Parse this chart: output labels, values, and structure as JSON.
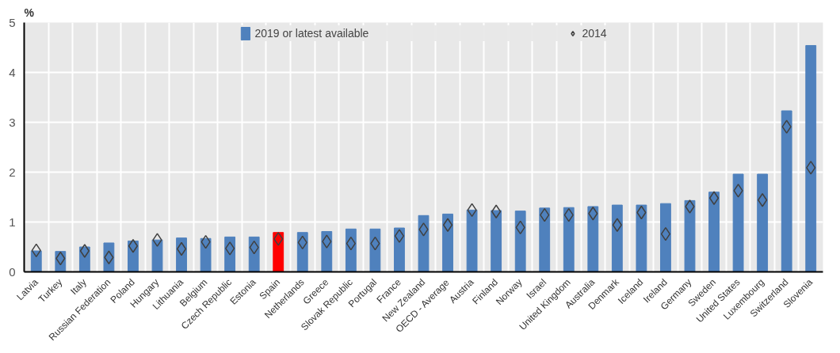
{
  "chart_data": {
    "type": "bar",
    "ylabel": "%",
    "categories": [
      "Latvia",
      "Turkey",
      "Italy",
      "Russian Federation",
      "Poland",
      "Hungary",
      "Lithuania",
      "Belgium",
      "Czech Republic",
      "Estonia",
      "Spain",
      "Netherlands",
      "Greece",
      "Slovak Republic",
      "Portugal",
      "France",
      "New Zealand",
      "OECD - Average",
      "Austria",
      "Finland",
      "Norway",
      "Israel",
      "United Kingdom",
      "Australia",
      "Denmark",
      "Iceland",
      "Ireland",
      "Germany",
      "Sweden",
      "United States",
      "Luxembourg",
      "Switzerland",
      "Slovenia"
    ],
    "series": [
      {
        "name": "2019 or latest available",
        "color": "#4f81bd",
        "colors": [
          "#4f81bd",
          "#4f81bd",
          "#4f81bd",
          "#4f81bd",
          "#4f81bd",
          "#4f81bd",
          "#4f81bd",
          "#4f81bd",
          "#4f81bd",
          "#4f81bd",
          "#ff0000",
          "#4f81bd",
          "#4f81bd",
          "#4f81bd",
          "#4f81bd",
          "#4f81bd",
          "#4f81bd",
          "#4f81bd",
          "#4f81bd",
          "#4f81bd",
          "#4f81bd",
          "#4f81bd",
          "#4f81bd",
          "#4f81bd",
          "#4f81bd",
          "#4f81bd",
          "#4f81bd",
          "#4f81bd",
          "#4f81bd",
          "#4f81bd",
          "#4f81bd",
          "#4f81bd",
          "#4f81bd"
        ],
        "values": [
          0.42,
          0.41,
          0.5,
          0.58,
          0.62,
          0.64,
          0.68,
          0.67,
          0.7,
          0.7,
          0.79,
          0.79,
          0.81,
          0.86,
          0.86,
          0.88,
          1.13,
          1.16,
          1.24,
          1.23,
          1.22,
          1.28,
          1.29,
          1.31,
          1.34,
          1.34,
          1.37,
          1.43,
          1.6,
          1.96,
          1.96,
          3.23,
          4.54
        ]
      },
      {
        "name": "2014",
        "type": "scatter",
        "marker": "diamond",
        "color": "#404040",
        "values": [
          0.43,
          0.27,
          0.42,
          0.29,
          0.52,
          0.64,
          0.46,
          0.6,
          0.47,
          0.49,
          0.66,
          0.59,
          0.61,
          0.57,
          0.57,
          0.72,
          0.85,
          0.94,
          1.24,
          1.21,
          0.89,
          1.14,
          1.14,
          1.17,
          0.94,
          1.19,
          0.76,
          1.31,
          1.48,
          1.63,
          1.44,
          2.91,
          2.09
        ]
      }
    ],
    "ylim": [
      0,
      5
    ],
    "yticks": [
      0,
      1,
      2,
      3,
      4,
      5
    ],
    "grid": true,
    "legend": "top"
  }
}
